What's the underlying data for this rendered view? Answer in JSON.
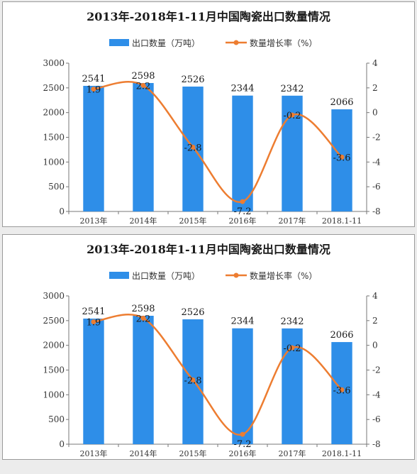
{
  "chart_data": [
    {
      "type": "bar+line",
      "title": "2013年-2018年1-11月中国陶瓷出口数量情况",
      "categories": [
        "2013年",
        "2014年",
        "2015年",
        "2016年",
        "2017年",
        "2018.1-11"
      ],
      "series": [
        {
          "name": "出口数量（万吨）",
          "type": "bar",
          "axis": "left",
          "values": [
            2541,
            2598,
            2526,
            2344,
            2342,
            2066
          ],
          "color": "#2e8ee8"
        },
        {
          "name": "数量增长率（%）",
          "type": "line",
          "axis": "right",
          "values": [
            1.9,
            2.2,
            -2.8,
            -7.2,
            -0.2,
            -3.6
          ],
          "color": "#ed7d31"
        }
      ],
      "y_left": {
        "min": 0,
        "max": 3000,
        "ticks": [
          0,
          500,
          1000,
          1500,
          2000,
          2500,
          3000
        ]
      },
      "y_right": {
        "min": -8,
        "max": 4,
        "ticks": [
          -8,
          -6,
          -4,
          -2,
          0,
          2,
          4
        ]
      },
      "legend_position": "top-center",
      "grid": false
    },
    {
      "type": "bar+line",
      "title": "2013年-2018年1-11月中国陶瓷出口数量情况",
      "categories": [
        "2013年",
        "2014年",
        "2015年",
        "2016年",
        "2017年",
        "2018.1-11"
      ],
      "series": [
        {
          "name": "出口数量（万吨）",
          "type": "bar",
          "axis": "left",
          "values": [
            2541,
            2598,
            2526,
            2344,
            2342,
            2066
          ],
          "color": "#2e8ee8"
        },
        {
          "name": "数量增长率（%）",
          "type": "line",
          "axis": "right",
          "values": [
            1.9,
            2.2,
            -2.8,
            -7.2,
            -0.2,
            -3.6
          ],
          "color": "#ed7d31"
        }
      ],
      "y_left": {
        "min": 0,
        "max": 3000,
        "ticks": [
          0,
          500,
          1000,
          1500,
          2000,
          2500,
          3000
        ]
      },
      "y_right": {
        "min": -8,
        "max": 4,
        "ticks": [
          -8,
          -6,
          -4,
          -2,
          0,
          2,
          4
        ]
      },
      "legend_position": "top-center",
      "grid": false
    }
  ]
}
